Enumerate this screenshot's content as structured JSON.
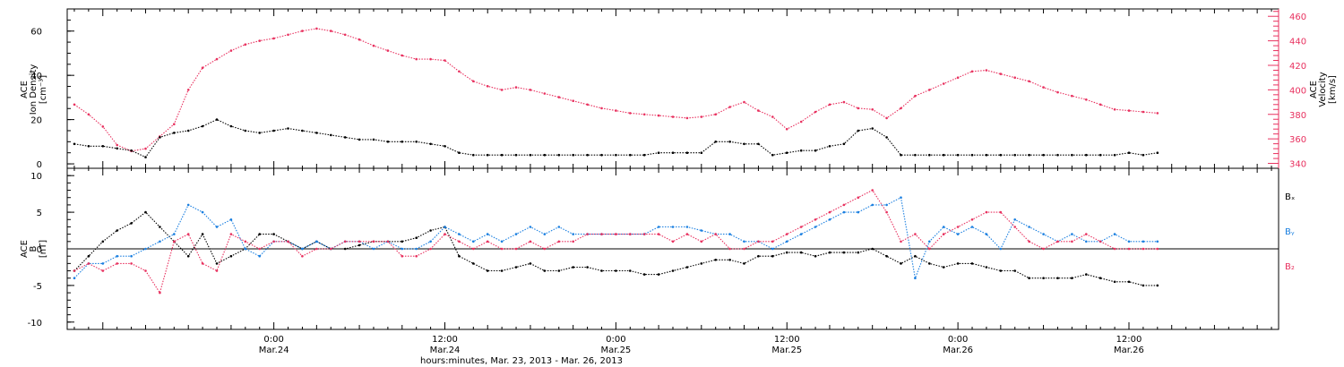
{
  "colors": {
    "density": "#000000",
    "velocity": "#e8315f",
    "bx": "#000000",
    "by": "#1a7fe0",
    "bz": "#e8315f",
    "axis": "#000000"
  },
  "x_axis": {
    "ticks": [
      {
        "time": "0:00",
        "date": "Mar.24",
        "hours": 24
      },
      {
        "time": "12:00",
        "date": "Mar.24",
        "hours": 36
      },
      {
        "time": "0:00",
        "date": "Mar.25",
        "hours": 48
      },
      {
        "time": "12:00",
        "date": "Mar.25",
        "hours": 60
      },
      {
        "time": "0:00",
        "date": "Mar.26",
        "hours": 72
      },
      {
        "time": "12:00",
        "date": "Mar.26",
        "hours": 84
      }
    ],
    "label": "hours:minutes, Mar. 23, 2013 - Mar. 26, 2013"
  },
  "panel1": {
    "left_label": [
      "ACE",
      "Ion Density",
      "[cm⁻³]"
    ],
    "right_label": [
      "ACE",
      "Velocity",
      "[km/s]"
    ],
    "left_ticks": [
      "0",
      "20",
      "40",
      "60"
    ],
    "right_ticks": [
      "340",
      "360",
      "380",
      "400",
      "420",
      "440",
      "460"
    ]
  },
  "panel2": {
    "left_label": [
      "ACE",
      "B",
      "[nT]"
    ],
    "left_ticks": [
      "-10",
      "-5",
      "0",
      "5",
      "10"
    ],
    "legend": [
      {
        "text": "Bₓ",
        "color": "#000000"
      },
      {
        "text": "Bᵧ",
        "color": "#1a7fe0"
      },
      {
        "text": "B₂",
        "color": "#e8315f"
      }
    ]
  },
  "chart_data": [
    {
      "type": "scatter",
      "panel": "plasma",
      "x_unit": "hours since 2013-03-23 00:00 UT",
      "xlim": [
        9.5,
        94.5
      ],
      "series": [
        {
          "name": "Ion Density",
          "axis": "left",
          "ylim": [
            -2,
            70
          ],
          "x": [
            10,
            11,
            12,
            13,
            14,
            15,
            16,
            17,
            18,
            19,
            20,
            21,
            22,
            23,
            24,
            25,
            26,
            27,
            28,
            29,
            30,
            31,
            32,
            33,
            34,
            35,
            36,
            37,
            38,
            39,
            40,
            41,
            42,
            43,
            44,
            45,
            46,
            47,
            48,
            49,
            50,
            51,
            52,
            53,
            54,
            55,
            56,
            57,
            58,
            59,
            60,
            61,
            62,
            63,
            64,
            65,
            66,
            67,
            68,
            69,
            70,
            71,
            72,
            73,
            74,
            75,
            76,
            77,
            78,
            79,
            80,
            81,
            82,
            83,
            84,
            85,
            86
          ],
          "y": [
            9,
            8,
            8,
            7,
            6,
            3,
            12,
            14,
            15,
            17,
            20,
            17,
            15,
            14,
            15,
            16,
            15,
            14,
            13,
            12,
            11,
            11,
            10,
            10,
            10,
            9,
            8,
            5,
            4,
            4,
            4,
            4,
            4,
            4,
            4,
            4,
            4,
            4,
            4,
            4,
            4,
            5,
            5,
            5,
            5,
            10,
            10,
            9,
            9,
            4,
            5,
            6,
            6,
            8,
            9,
            15,
            16,
            12,
            4,
            4,
            4,
            4,
            4,
            4,
            4,
            4,
            4,
            4,
            4,
            4,
            4,
            4,
            4,
            4,
            5,
            4,
            5
          ]
        },
        {
          "name": "Velocity",
          "axis": "right",
          "ylim": [
            336,
            466
          ],
          "x": [
            10,
            11,
            12,
            13,
            14,
            15,
            16,
            17,
            18,
            19,
            20,
            21,
            22,
            23,
            24,
            25,
            26,
            27,
            28,
            29,
            30,
            31,
            32,
            33,
            34,
            35,
            36,
            37,
            38,
            39,
            40,
            41,
            42,
            43,
            44,
            45,
            46,
            47,
            48,
            49,
            50,
            51,
            52,
            53,
            54,
            55,
            56,
            57,
            58,
            59,
            60,
            61,
            62,
            63,
            64,
            65,
            66,
            67,
            68,
            69,
            70,
            71,
            72,
            73,
            74,
            75,
            76,
            77,
            78,
            79,
            80,
            81,
            82,
            83,
            84,
            85,
            86
          ],
          "y": [
            388,
            380,
            370,
            355,
            350,
            352,
            362,
            372,
            400,
            418,
            425,
            432,
            437,
            440,
            442,
            445,
            448,
            450,
            448,
            445,
            441,
            436,
            432,
            428,
            425,
            425,
            424,
            415,
            407,
            403,
            400,
            402,
            400,
            397,
            394,
            391,
            388,
            385,
            383,
            381,
            380,
            379,
            378,
            377,
            378,
            380,
            386,
            390,
            383,
            378,
            368,
            374,
            382,
            388,
            390,
            385,
            384,
            377,
            385,
            395,
            400,
            405,
            410,
            415,
            416,
            413,
            410,
            407,
            402,
            398,
            395,
            392,
            388,
            384,
            383,
            382,
            381
          ]
        }
      ]
    },
    {
      "type": "scatter",
      "panel": "magnetic field",
      "x_unit": "hours since 2013-03-23 00:00 UT",
      "xlim": [
        9.5,
        94.5
      ],
      "ylabel": "B [nT]",
      "ylim": [
        -11,
        11
      ],
      "series": [
        {
          "name": "Bx",
          "x": [
            10,
            11,
            12,
            13,
            14,
            15,
            16,
            17,
            18,
            19,
            20,
            21,
            22,
            23,
            24,
            25,
            26,
            27,
            28,
            29,
            30,
            31,
            32,
            33,
            34,
            35,
            36,
            37,
            38,
            39,
            40,
            41,
            42,
            43,
            44,
            45,
            46,
            47,
            48,
            49,
            50,
            51,
            52,
            53,
            54,
            55,
            56,
            57,
            58,
            59,
            60,
            61,
            62,
            63,
            64,
            65,
            66,
            67,
            68,
            69,
            70,
            71,
            72,
            73,
            74,
            75,
            76,
            77,
            78,
            79,
            80,
            81,
            82,
            83,
            84,
            85,
            86
          ],
          "y": [
            -3,
            -1,
            1,
            2.5,
            3.5,
            5,
            3,
            1,
            -1,
            2,
            -2,
            -1,
            0,
            2,
            2,
            1,
            0,
            1,
            0,
            0,
            0.5,
            1,
            1,
            1,
            1.5,
            2.5,
            3,
            -1,
            -2,
            -3,
            -3,
            -2.5,
            -2,
            -3,
            -3,
            -2.5,
            -2.5,
            -3,
            -3,
            -3,
            -3.5,
            -3.5,
            -3,
            -2.5,
            -2,
            -1.5,
            -1.5,
            -2,
            -1,
            -1,
            -0.5,
            -0.5,
            -1,
            -0.5,
            -0.5,
            -0.5,
            0,
            -1,
            -2,
            -1,
            -2,
            -2.5,
            -2,
            -2,
            -2.5,
            -3,
            -3,
            -4,
            -4,
            -4,
            -4,
            -3.5,
            -4,
            -4.5,
            -4.5,
            -5,
            -5
          ]
        },
        {
          "name": "By",
          "x": [
            10,
            11,
            12,
            13,
            14,
            15,
            16,
            17,
            18,
            19,
            20,
            21,
            22,
            23,
            24,
            25,
            26,
            27,
            28,
            29,
            30,
            31,
            32,
            33,
            34,
            35,
            36,
            37,
            38,
            39,
            40,
            41,
            42,
            43,
            44,
            45,
            46,
            47,
            48,
            49,
            50,
            51,
            52,
            53,
            54,
            55,
            56,
            57,
            58,
            59,
            60,
            61,
            62,
            63,
            64,
            65,
            66,
            67,
            68,
            69,
            70,
            71,
            72,
            73,
            74,
            75,
            76,
            77,
            78,
            79,
            80,
            81,
            82,
            83,
            84,
            85,
            86
          ],
          "y": [
            -4,
            -2,
            -2,
            -1,
            -1,
            0,
            1,
            2,
            6,
            5,
            3,
            4,
            0,
            -1,
            1,
            1,
            0,
            1,
            0,
            1,
            1,
            0,
            1,
            0,
            0,
            1,
            3,
            2,
            1,
            2,
            1,
            2,
            3,
            2,
            3,
            2,
            2,
            2,
            2,
            2,
            2,
            3,
            3,
            3,
            2.5,
            2,
            2,
            1,
            1,
            0,
            1,
            2,
            3,
            4,
            5,
            5,
            6,
            6,
            7,
            -4,
            1,
            3,
            2,
            3,
            2,
            0,
            4,
            3,
            2,
            1,
            2,
            1,
            1,
            2,
            1,
            1,
            1
          ]
        },
        {
          "name": "Bz",
          "x": [
            10,
            11,
            12,
            13,
            14,
            15,
            16,
            17,
            18,
            19,
            20,
            21,
            22,
            23,
            24,
            25,
            26,
            27,
            28,
            29,
            30,
            31,
            32,
            33,
            34,
            35,
            36,
            37,
            38,
            39,
            40,
            41,
            42,
            43,
            44,
            45,
            46,
            47,
            48,
            49,
            50,
            51,
            52,
            53,
            54,
            55,
            56,
            57,
            58,
            59,
            60,
            61,
            62,
            63,
            64,
            65,
            66,
            67,
            68,
            69,
            70,
            71,
            72,
            73,
            74,
            75,
            76,
            77,
            78,
            79,
            80,
            81,
            82,
            83,
            84,
            85,
            86
          ],
          "y": [
            -3,
            -2,
            -3,
            -2,
            -2,
            -3,
            -6,
            1,
            2,
            -2,
            -3,
            2,
            1,
            0,
            1,
            1,
            -1,
            0,
            0,
            1,
            1,
            1,
            1,
            -1,
            -1,
            0,
            2,
            1,
            0,
            1,
            0,
            0,
            1,
            0,
            1,
            1,
            2,
            2,
            2,
            2,
            2,
            2,
            1,
            2,
            1,
            2,
            0,
            0,
            1,
            1,
            2,
            3,
            4,
            5,
            6,
            7,
            8,
            5,
            1,
            2,
            0,
            2,
            3,
            4,
            5,
            5,
            3,
            1,
            0,
            1,
            1,
            2,
            1,
            0,
            0,
            0,
            0
          ]
        }
      ]
    }
  ]
}
